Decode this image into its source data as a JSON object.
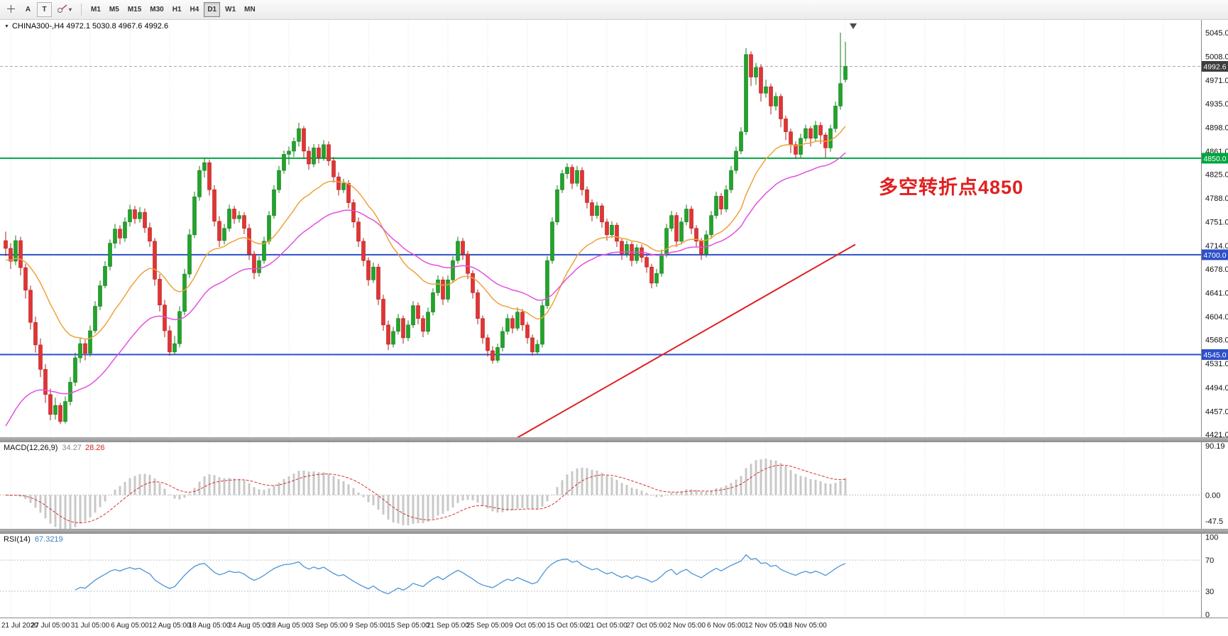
{
  "toolbar": {
    "text_tool": "A",
    "frame_tool": "T",
    "timeframes": [
      "M1",
      "M5",
      "M15",
      "M30",
      "H1",
      "H4",
      "D1",
      "W1",
      "MN"
    ],
    "active_timeframe": "D1"
  },
  "chart": {
    "header": "CHINA300-,H4 4972.1 5030.8 4967.6 4992.6"
  },
  "chart_data": {
    "type": "candlestick",
    "symbol": "CHINA300-",
    "timeframe": "H4",
    "ohlc_display": {
      "open": "4972.1",
      "high": "5030.8",
      "low": "4967.6",
      "close": "4992.6"
    },
    "price_axis": {
      "ticks": [
        "5045.0",
        "5008.0",
        "4971.0",
        "4935.0",
        "4898.0",
        "4861.0",
        "4825.0",
        "4788.0",
        "4751.0",
        "4714.0",
        "4678.0",
        "4641.0",
        "4604.0",
        "4568.0",
        "4531.0",
        "4494.0",
        "4457.0",
        "4421.0"
      ],
      "max": 5045,
      "min": 4421
    },
    "time_labels": [
      "21 Jul 2020",
      "27 Jul 05:00",
      "31 Jul 05:00",
      "6 Aug 05:00",
      "12 Aug 05:00",
      "18 Aug 05:00",
      "24 Aug 05:00",
      "28 Aug 05:00",
      "3 Sep 05:00",
      "9 Sep 05:00",
      "15 Sep 05:00",
      "21 Sep 05:00",
      "25 Sep 05:00",
      "9 Oct 05:00",
      "15 Oct 05:00",
      "21 Oct 05:00",
      "27 Oct 05:00",
      "2 Nov 05:00",
      "6 Nov 05:00",
      "12 Nov 05:00",
      "18 Nov 05:00"
    ],
    "levels": [
      {
        "price": 4850,
        "label": "4850.0",
        "color": "#00a540"
      },
      {
        "price": 4700,
        "label": "4700.0",
        "color": "#2d4fc8"
      },
      {
        "price": 4545,
        "label": "4545.0",
        "color": "#2d4fc8"
      }
    ],
    "current_price": {
      "price": 4992.6,
      "label": "4992.6",
      "tag_color": "#3d3d3d"
    },
    "annotation": {
      "text": "多空转折点4850",
      "color": "#e02020"
    },
    "colors": {
      "up": "#22a42a",
      "up_border": "#157d1e",
      "down": "#e23434",
      "down_border": "#b01f1f",
      "grid": "#e0e0e0",
      "macd_hist": "#c8c8c8",
      "macd_signal": "#d23333",
      "rsi_line": "#4d94d6"
    },
    "moving_averages": [
      {
        "period": 21,
        "seed": 4690,
        "color": "#f0a13a"
      },
      {
        "period": 40,
        "seed": 4420,
        "color": "#e44fe0"
      }
    ],
    "trendline": {
      "from_index": 103,
      "from_price": 4416,
      "to_index": 171,
      "to_price": 4716,
      "color": "#e02020"
    },
    "macd": {
      "label": "MACD(12,26,9)",
      "fast": 12,
      "slow": 26,
      "signal": 9,
      "value_main": "34.27",
      "value_signal": "28.26",
      "axis_ticks": [
        "90.19",
        "0.00",
        "-47.5"
      ],
      "range": [
        -62,
        97
      ]
    },
    "rsi": {
      "label": "RSI(14)",
      "period": 14,
      "value": "67.3219",
      "levels": [
        70,
        30
      ],
      "axis_ticks": [
        "100",
        "70",
        "30",
        "0"
      ],
      "range": [
        -4,
        104
      ]
    },
    "candles": [
      [
        4722,
        4736,
        4698,
        4710
      ],
      [
        4710,
        4718,
        4678,
        4690
      ],
      [
        4690,
        4730,
        4684,
        4722
      ],
      [
        4722,
        4728,
        4668,
        4680
      ],
      [
        4680,
        4686,
        4632,
        4645
      ],
      [
        4645,
        4652,
        4584,
        4595
      ],
      [
        4595,
        4604,
        4548,
        4560
      ],
      [
        4560,
        4570,
        4510,
        4522
      ],
      [
        4522,
        4530,
        4470,
        4483
      ],
      [
        4483,
        4492,
        4443,
        4452
      ],
      [
        4452,
        4478,
        4444,
        4466
      ],
      [
        4466,
        4470,
        4437,
        4441
      ],
      [
        4441,
        4480,
        4438,
        4472
      ],
      [
        4472,
        4510,
        4466,
        4502
      ],
      [
        4502,
        4548,
        4496,
        4540
      ],
      [
        4540,
        4570,
        4532,
        4562
      ],
      [
        4562,
        4568,
        4536,
        4547
      ],
      [
        4547,
        4590,
        4542,
        4582
      ],
      [
        4582,
        4628,
        4578,
        4620
      ],
      [
        4620,
        4660,
        4614,
        4652
      ],
      [
        4652,
        4690,
        4648,
        4682
      ],
      [
        4682,
        4724,
        4676,
        4718
      ],
      [
        4718,
        4748,
        4710,
        4740
      ],
      [
        4740,
        4746,
        4716,
        4726
      ],
      [
        4726,
        4758,
        4720,
        4751
      ],
      [
        4751,
        4778,
        4744,
        4770
      ],
      [
        4770,
        4776,
        4748,
        4756
      ],
      [
        4756,
        4774,
        4750,
        4766
      ],
      [
        4766,
        4772,
        4734,
        4742
      ],
      [
        4742,
        4750,
        4712,
        4721
      ],
      [
        4721,
        4726,
        4652,
        4662
      ],
      [
        4662,
        4670,
        4612,
        4622
      ],
      [
        4622,
        4630,
        4572,
        4582
      ],
      [
        4582,
        4590,
        4543,
        4549
      ],
      [
        4549,
        4574,
        4545,
        4562
      ],
      [
        4562,
        4620,
        4556,
        4612
      ],
      [
        4612,
        4678,
        4606,
        4670
      ],
      [
        4670,
        4740,
        4664,
        4731
      ],
      [
        4731,
        4798,
        4726,
        4790
      ],
      [
        4790,
        4838,
        4784,
        4831
      ],
      [
        4831,
        4850,
        4820,
        4843
      ],
      [
        4843,
        4848,
        4792,
        4801
      ],
      [
        4801,
        4808,
        4744,
        4752
      ],
      [
        4752,
        4760,
        4712,
        4722
      ],
      [
        4722,
        4748,
        4716,
        4741
      ],
      [
        4741,
        4778,
        4736,
        4771
      ],
      [
        4771,
        4776,
        4748,
        4756
      ],
      [
        4756,
        4768,
        4750,
        4761
      ],
      [
        4761,
        4766,
        4732,
        4741
      ],
      [
        4741,
        4748,
        4692,
        4701
      ],
      [
        4701,
        4706,
        4662,
        4672
      ],
      [
        4672,
        4698,
        4666,
        4691
      ],
      [
        4691,
        4728,
        4686,
        4721
      ],
      [
        4721,
        4768,
        4716,
        4761
      ],
      [
        4761,
        4808,
        4756,
        4801
      ],
      [
        4801,
        4838,
        4796,
        4831
      ],
      [
        4831,
        4862,
        4826,
        4856
      ],
      [
        4856,
        4868,
        4840,
        4861
      ],
      [
        4861,
        4882,
        4852,
        4876
      ],
      [
        4876,
        4905,
        4868,
        4896
      ],
      [
        4896,
        4900,
        4850,
        4861
      ],
      [
        4861,
        4868,
        4832,
        4841
      ],
      [
        4841,
        4872,
        4836,
        4866
      ],
      [
        4866,
        4872,
        4842,
        4851
      ],
      [
        4851,
        4878,
        4846,
        4871
      ],
      [
        4871,
        4876,
        4838,
        4846
      ],
      [
        4846,
        4852,
        4812,
        4821
      ],
      [
        4821,
        4828,
        4792,
        4801
      ],
      [
        4801,
        4818,
        4796,
        4811
      ],
      [
        4811,
        4816,
        4772,
        4781
      ],
      [
        4781,
        4786,
        4742,
        4751
      ],
      [
        4751,
        4758,
        4712,
        4721
      ],
      [
        4721,
        4726,
        4682,
        4691
      ],
      [
        4691,
        4696,
        4652,
        4661
      ],
      [
        4661,
        4688,
        4656,
        4681
      ],
      [
        4681,
        4686,
        4622,
        4631
      ],
      [
        4631,
        4638,
        4582,
        4591
      ],
      [
        4591,
        4598,
        4552,
        4561
      ],
      [
        4561,
        4588,
        4556,
        4581
      ],
      [
        4581,
        4608,
        4576,
        4601
      ],
      [
        4601,
        4606,
        4562,
        4571
      ],
      [
        4571,
        4598,
        4566,
        4591
      ],
      [
        4591,
        4628,
        4586,
        4621
      ],
      [
        4621,
        4626,
        4592,
        4601
      ],
      [
        4601,
        4606,
        4572,
        4581
      ],
      [
        4581,
        4618,
        4576,
        4611
      ],
      [
        4611,
        4648,
        4606,
        4641
      ],
      [
        4641,
        4668,
        4636,
        4661
      ],
      [
        4661,
        4666,
        4622,
        4631
      ],
      [
        4631,
        4668,
        4626,
        4661
      ],
      [
        4661,
        4698,
        4656,
        4691
      ],
      [
        4691,
        4728,
        4686,
        4721
      ],
      [
        4721,
        4726,
        4692,
        4701
      ],
      [
        4701,
        4706,
        4662,
        4671
      ],
      [
        4671,
        4676,
        4632,
        4641
      ],
      [
        4641,
        4646,
        4592,
        4601
      ],
      [
        4601,
        4606,
        4562,
        4571
      ],
      [
        4571,
        4576,
        4542,
        4551
      ],
      [
        4551,
        4558,
        4531,
        4536
      ],
      [
        4536,
        4562,
        4532,
        4556
      ],
      [
        4556,
        4588,
        4550,
        4581
      ],
      [
        4581,
        4608,
        4576,
        4601
      ],
      [
        4601,
        4606,
        4578,
        4586
      ],
      [
        4586,
        4618,
        4582,
        4611
      ],
      [
        4611,
        4616,
        4582,
        4591
      ],
      [
        4591,
        4596,
        4562,
        4571
      ],
      [
        4571,
        4576,
        4543,
        4549
      ],
      [
        4549,
        4568,
        4544,
        4561
      ],
      [
        4561,
        4628,
        4556,
        4621
      ],
      [
        4621,
        4698,
        4616,
        4691
      ],
      [
        4691,
        4758,
        4686,
        4751
      ],
      [
        4751,
        4808,
        4746,
        4801
      ],
      [
        4801,
        4832,
        4796,
        4826
      ],
      [
        4826,
        4842,
        4818,
        4836
      ],
      [
        4836,
        4840,
        4802,
        4811
      ],
      [
        4811,
        4838,
        4806,
        4831
      ],
      [
        4831,
        4836,
        4792,
        4801
      ],
      [
        4801,
        4806,
        4772,
        4781
      ],
      [
        4781,
        4786,
        4752,
        4761
      ],
      [
        4761,
        4782,
        4756,
        4776
      ],
      [
        4776,
        4780,
        4742,
        4751
      ],
      [
        4751,
        4756,
        4722,
        4731
      ],
      [
        4731,
        4752,
        4726,
        4746
      ],
      [
        4746,
        4750,
        4712,
        4721
      ],
      [
        4721,
        4726,
        4692,
        4701
      ],
      [
        4701,
        4722,
        4696,
        4716
      ],
      [
        4716,
        4720,
        4682,
        4691
      ],
      [
        4691,
        4716,
        4686,
        4711
      ],
      [
        4711,
        4716,
        4688,
        4696
      ],
      [
        4696,
        4700,
        4672,
        4681
      ],
      [
        4681,
        4686,
        4648,
        4656
      ],
      [
        4656,
        4678,
        4650,
        4671
      ],
      [
        4671,
        4708,
        4666,
        4701
      ],
      [
        4701,
        4748,
        4696,
        4741
      ],
      [
        4741,
        4768,
        4736,
        4761
      ],
      [
        4761,
        4766,
        4712,
        4721
      ],
      [
        4721,
        4758,
        4716,
        4751
      ],
      [
        4751,
        4778,
        4746,
        4771
      ],
      [
        4771,
        4776,
        4732,
        4741
      ],
      [
        4741,
        4746,
        4712,
        4721
      ],
      [
        4721,
        4726,
        4692,
        4701
      ],
      [
        4701,
        4738,
        4696,
        4731
      ],
      [
        4731,
        4768,
        4726,
        4761
      ],
      [
        4761,
        4798,
        4756,
        4791
      ],
      [
        4791,
        4796,
        4762,
        4771
      ],
      [
        4771,
        4808,
        4766,
        4801
      ],
      [
        4801,
        4838,
        4796,
        4831
      ],
      [
        4831,
        4868,
        4826,
        4861
      ],
      [
        4861,
        4898,
        4856,
        4891
      ],
      [
        4891,
        5021,
        4886,
        5011
      ],
      [
        5011,
        5016,
        4962,
        4976
      ],
      [
        4976,
        4998,
        4964,
        4991
      ],
      [
        4991,
        4996,
        4938,
        4951
      ],
      [
        4951,
        4972,
        4944,
        4961
      ],
      [
        4961,
        4966,
        4918,
        4931
      ],
      [
        4931,
        4952,
        4924,
        4946
      ],
      [
        4946,
        4950,
        4898,
        4911
      ],
      [
        4911,
        4916,
        4878,
        4891
      ],
      [
        4891,
        4896,
        4858,
        4871
      ],
      [
        4871,
        4876,
        4849,
        4856
      ],
      [
        4856,
        4888,
        4851,
        4881
      ],
      [
        4881,
        4902,
        4876,
        4896
      ],
      [
        4896,
        4900,
        4868,
        4881
      ],
      [
        4881,
        4908,
        4876,
        4901
      ],
      [
        4901,
        4906,
        4872,
        4886
      ],
      [
        4886,
        4890,
        4851,
        4866
      ],
      [
        4866,
        4902,
        4860,
        4896
      ],
      [
        4896,
        4938,
        4890,
        4931
      ],
      [
        4931,
        5045,
        4925,
        4966
      ],
      [
        4972.1,
        5030.8,
        4967.6,
        4992.6
      ]
    ]
  }
}
